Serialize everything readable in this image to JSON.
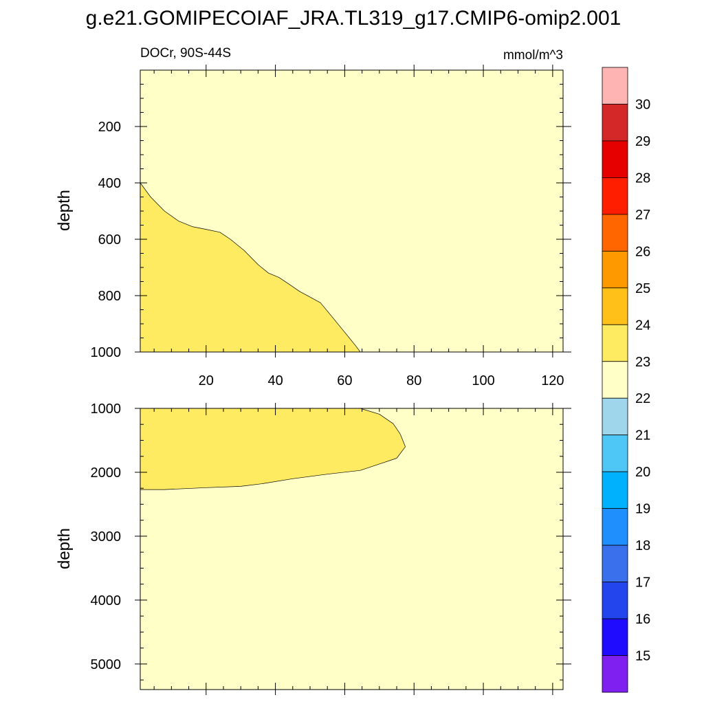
{
  "chart_data": {
    "type": "contour",
    "title": "g.e21.GOMIPECOIAF_JRA.TL319_g17.CMIP6-omip2.001",
    "variable_label": "DOCr, 90S-44S",
    "units": "mmol/m^3",
    "colorbar": {
      "levels": [
        15,
        16,
        17,
        18,
        19,
        20,
        21,
        22,
        23,
        24,
        25,
        26,
        27,
        28,
        29,
        30
      ],
      "colors": [
        "#ffb4b4",
        "#d42828",
        "#e60000",
        "#ff1e00",
        "#ff6600",
        "#ff9900",
        "#ffc01a",
        "#ffeb62",
        "#ffffc8",
        "#a0d6ec",
        "#4fc7f6",
        "#00b1fd",
        "#1f8ffe",
        "#3a70eb",
        "#2245ee",
        "#1f0cff",
        "#7f1ff0"
      ],
      "color_order": "top-to-bottom"
    },
    "panels": [
      {
        "name": "upper",
        "ylabel": "depth",
        "xlim": [
          1,
          123
        ],
        "ylim": [
          0,
          1000
        ],
        "y_inverted": true,
        "xticks": [
          20,
          40,
          60,
          80,
          100,
          120
        ],
        "xtick_labels": [
          "20",
          "40",
          "60",
          "80",
          "100",
          "120"
        ],
        "yticks": [
          200,
          400,
          600,
          800,
          1000
        ],
        "ytick_labels": [
          "200",
          "400",
          "600",
          "800",
          "1000"
        ],
        "background_class": "22-23",
        "regions": [
          {
            "class": "23-24",
            "boundary_xy": [
              [
                1,
                400
              ],
              [
                4,
                450
              ],
              [
                8,
                500
              ],
              [
                12,
                535
              ],
              [
                16,
                555
              ],
              [
                20,
                565
              ],
              [
                24,
                575
              ],
              [
                27,
                600
              ],
              [
                31,
                640
              ],
              [
                35,
                690
              ],
              [
                38,
                720
              ],
              [
                41,
                735
              ],
              [
                44,
                760
              ],
              [
                47,
                785
              ],
              [
                50,
                805
              ],
              [
                53,
                825
              ],
              [
                56,
                870
              ],
              [
                60,
                930
              ],
              [
                63,
                975
              ],
              [
                64.5,
                1000
              ],
              [
                1,
                1000
              ]
            ]
          }
        ]
      },
      {
        "name": "lower",
        "ylabel": "depth",
        "xlim": [
          1,
          123
        ],
        "ylim": [
          1000,
          5400
        ],
        "y_inverted": true,
        "xticks": [
          20,
          40,
          60,
          80,
          100,
          120
        ],
        "yticks": [
          1000,
          2000,
          3000,
          4000,
          5000
        ],
        "ytick_labels": [
          "1000",
          "2000",
          "3000",
          "4000",
          "5000"
        ],
        "background_class": "22-23",
        "regions": [
          {
            "class": "23-24",
            "boundary_xy": [
              [
                1,
                1000
              ],
              [
                64.5,
                1000
              ],
              [
                70,
                1090
              ],
              [
                74,
                1240
              ],
              [
                76,
                1400
              ],
              [
                77.5,
                1600
              ],
              [
                75,
                1780
              ],
              [
                70,
                1870
              ],
              [
                64.5,
                1970
              ],
              [
                55,
                2030
              ],
              [
                45,
                2100
              ],
              [
                36,
                2180
              ],
              [
                30,
                2220
              ],
              [
                20,
                2240
              ],
              [
                8,
                2270
              ],
              [
                1,
                2270
              ]
            ]
          }
        ]
      }
    ]
  }
}
